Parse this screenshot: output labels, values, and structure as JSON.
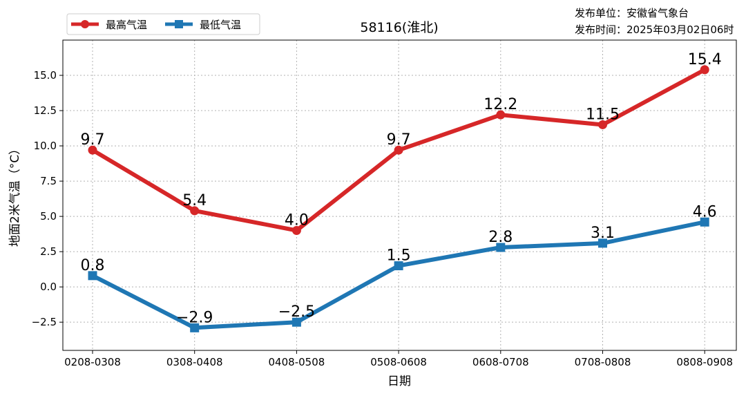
{
  "publisher": {
    "unit_label": "发布单位：",
    "unit": "安徽省气象台",
    "time_label": "发布时间：",
    "time": "2025年03月02日06时"
  },
  "chart_data": {
    "type": "line",
    "title": "58116(淮北)",
    "xlabel": "日期",
    "ylabel": "地面2米气温（°C）",
    "categories": [
      "0208-0308",
      "0308-0408",
      "0408-0508",
      "0508-0608",
      "0608-0708",
      "0708-0808",
      "0808-0908"
    ],
    "ylim": [
      -4.5,
      17.5
    ],
    "yticks": [
      -2.5,
      0.0,
      2.5,
      5.0,
      7.5,
      10.0,
      12.5,
      15.0
    ],
    "ytick_labels": [
      "−2.5",
      "0.0",
      "2.5",
      "5.0",
      "7.5",
      "10.0",
      "12.5",
      "15.0"
    ],
    "grid": true,
    "legend_position": "top-left",
    "series": [
      {
        "name": "最高气温",
        "color": "#d62728",
        "marker": "circle",
        "values": [
          9.7,
          5.4,
          4.0,
          9.7,
          12.2,
          11.5,
          15.4
        ],
        "labels": [
          "9.7",
          "5.4",
          "4.0",
          "9.7",
          "12.2",
          "11.5",
          "15.4"
        ]
      },
      {
        "name": "最低气温",
        "color": "#1f77b4",
        "marker": "square",
        "values": [
          0.8,
          -2.9,
          -2.5,
          1.5,
          2.8,
          3.1,
          4.6
        ],
        "labels": [
          "0.8",
          "−2.9",
          "−2.5",
          "1.5",
          "2.8",
          "3.1",
          "4.6"
        ]
      }
    ]
  }
}
